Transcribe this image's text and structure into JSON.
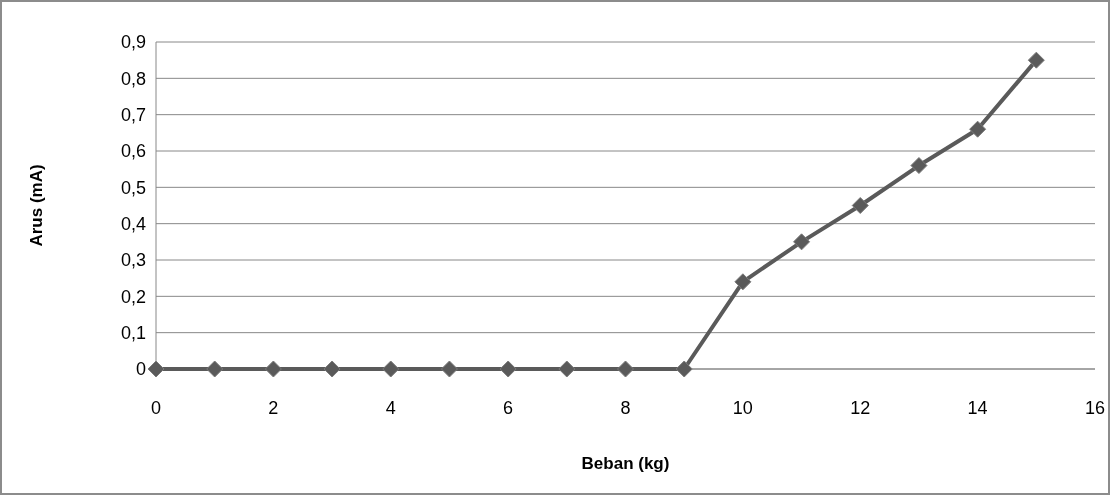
{
  "chart_data": {
    "type": "line",
    "xlabel": "Beban (kg)",
    "ylabel": "Arus (mA)",
    "x": [
      0,
      1,
      2,
      3,
      4,
      5,
      6,
      7,
      8,
      9,
      10,
      11,
      12,
      13,
      14,
      15
    ],
    "series": [
      {
        "color": "#5a5a5a",
        "values": [
          0,
          0,
          0,
          0,
          0,
          0,
          0,
          0,
          0,
          0,
          0.24,
          0.35,
          0.45,
          0.56,
          0.66,
          0.85
        ]
      }
    ],
    "xlim": [
      0,
      16
    ],
    "xticks": [
      0,
      2,
      4,
      6,
      8,
      10,
      12,
      14,
      16
    ],
    "ylim": [
      0,
      0.9
    ],
    "yticks": [
      {
        "value": 0,
        "label": "0"
      },
      {
        "value": 0.1,
        "label": "0,1"
      },
      {
        "value": 0.2,
        "label": "0,2"
      },
      {
        "value": 0.3,
        "label": "0,3"
      },
      {
        "value": 0.4,
        "label": "0,4"
      },
      {
        "value": 0.5,
        "label": "0,5"
      },
      {
        "value": 0.6,
        "label": "0,6"
      },
      {
        "value": 0.7,
        "label": "0,7"
      },
      {
        "value": 0.8,
        "label": "0,8"
      },
      {
        "value": 0.9,
        "label": "0,9"
      }
    ],
    "grid": "y",
    "marker": "diamond",
    "line_style": "solid"
  }
}
